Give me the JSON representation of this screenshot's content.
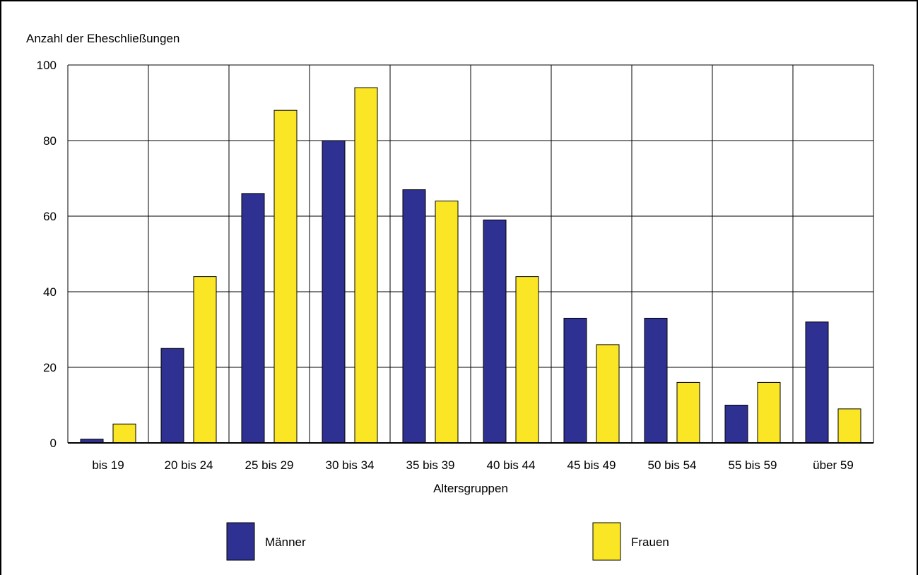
{
  "chart_data": {
    "type": "bar",
    "ylabel": "Anzahl der Eheschließungen",
    "xlabel": "Altersgruppen",
    "ylim": [
      0,
      100
    ],
    "yticks": [
      0,
      20,
      40,
      60,
      80,
      100
    ],
    "grid": true,
    "legend_position": "bottom",
    "categories": [
      "bis 19",
      "20 bis 24",
      "25 bis 29",
      "30 bis 34",
      "35 bis 39",
      "40 bis 44",
      "45 bis 49",
      "50 bis 54",
      "55 bis 59",
      "über 59"
    ],
    "series": [
      {
        "name": "Männer",
        "color": "#2e3192",
        "values": [
          1,
          25,
          66,
          80,
          67,
          59,
          33,
          33,
          10,
          32
        ]
      },
      {
        "name": "Frauen",
        "color": "#fbe625",
        "values": [
          5,
          44,
          88,
          94,
          64,
          44,
          26,
          16,
          16,
          9
        ]
      }
    ]
  }
}
